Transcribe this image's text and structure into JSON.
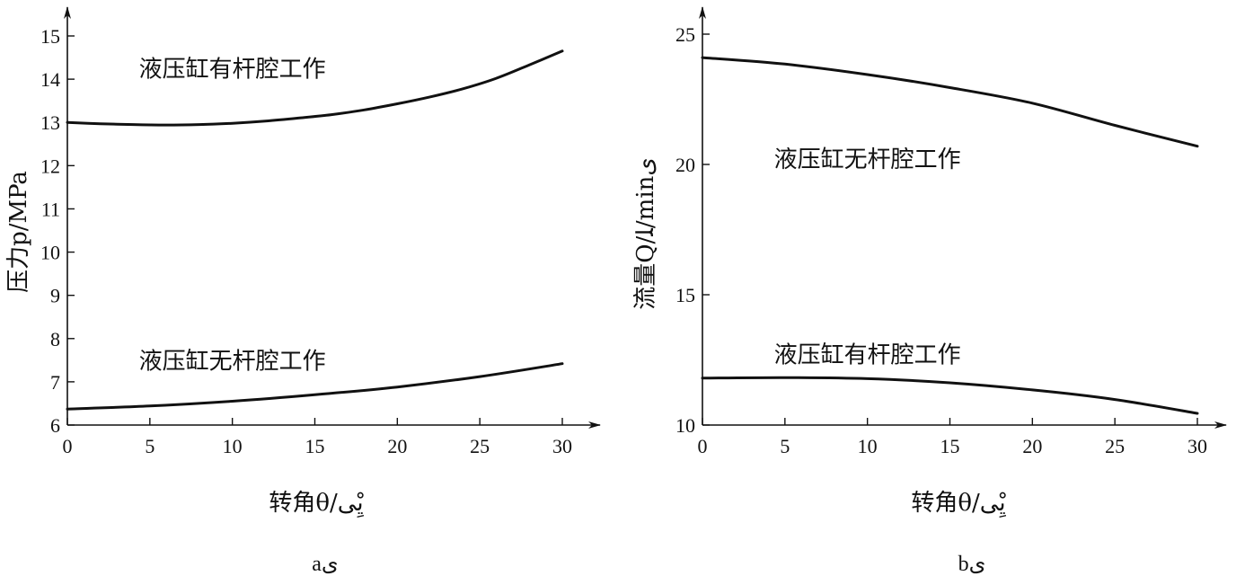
{
  "chart_data": [
    {
      "type": "line",
      "caption": "aی",
      "xlabel": "转角θ/یِْی",
      "ylabel": "压力p/MPa",
      "xlim": [
        0,
        30
      ],
      "ylim": [
        6,
        15.5
      ],
      "xticks": [
        0,
        5,
        10,
        15,
        20,
        25,
        30
      ],
      "yticks": [
        6,
        7,
        8,
        9,
        10,
        11,
        12,
        13,
        14,
        15
      ],
      "grid": false,
      "series": [
        {
          "annotation": "液压缸有杆腔工作",
          "annotation_at": [
            10,
            14.05
          ],
          "x": [
            0,
            2,
            4,
            6,
            8,
            10,
            12,
            14,
            16,
            18,
            20,
            22,
            24,
            26,
            28,
            30
          ],
          "y": [
            13.0,
            12.97,
            12.95,
            12.94,
            12.95,
            12.98,
            13.03,
            13.1,
            13.18,
            13.29,
            13.43,
            13.59,
            13.78,
            14.02,
            14.33,
            14.65
          ]
        },
        {
          "annotation": "液压缸无杆腔工作",
          "annotation_at": [
            10,
            7.3
          ],
          "x": [
            0,
            5,
            10,
            15,
            20,
            25,
            30
          ],
          "y": [
            6.37,
            6.44,
            6.55,
            6.7,
            6.88,
            7.12,
            7.42
          ]
        }
      ]
    },
    {
      "type": "line",
      "caption": "bی",
      "xlabel": "转角θ/یِْی",
      "ylabel": "流量Q/ﻠ/minی",
      "xlim": [
        0,
        30
      ],
      "ylim": [
        10,
        26
      ],
      "xticks": [
        0,
        5,
        10,
        15,
        20,
        25,
        30
      ],
      "yticks": [
        10,
        15,
        20,
        25
      ],
      "grid": false,
      "series": [
        {
          "annotation": "液压缸无杆腔工作",
          "annotation_at": [
            10,
            19.9
          ],
          "x": [
            0,
            5,
            10,
            15,
            20,
            25,
            30
          ],
          "y": [
            24.1,
            23.85,
            23.45,
            22.95,
            22.35,
            21.5,
            20.7
          ]
        },
        {
          "annotation": "液压缸有杆腔工作",
          "annotation_at": [
            10,
            12.4
          ],
          "x": [
            0,
            5,
            10,
            15,
            20,
            25,
            30
          ],
          "y": [
            11.8,
            11.82,
            11.78,
            11.62,
            11.35,
            10.98,
            10.45
          ]
        }
      ]
    }
  ]
}
